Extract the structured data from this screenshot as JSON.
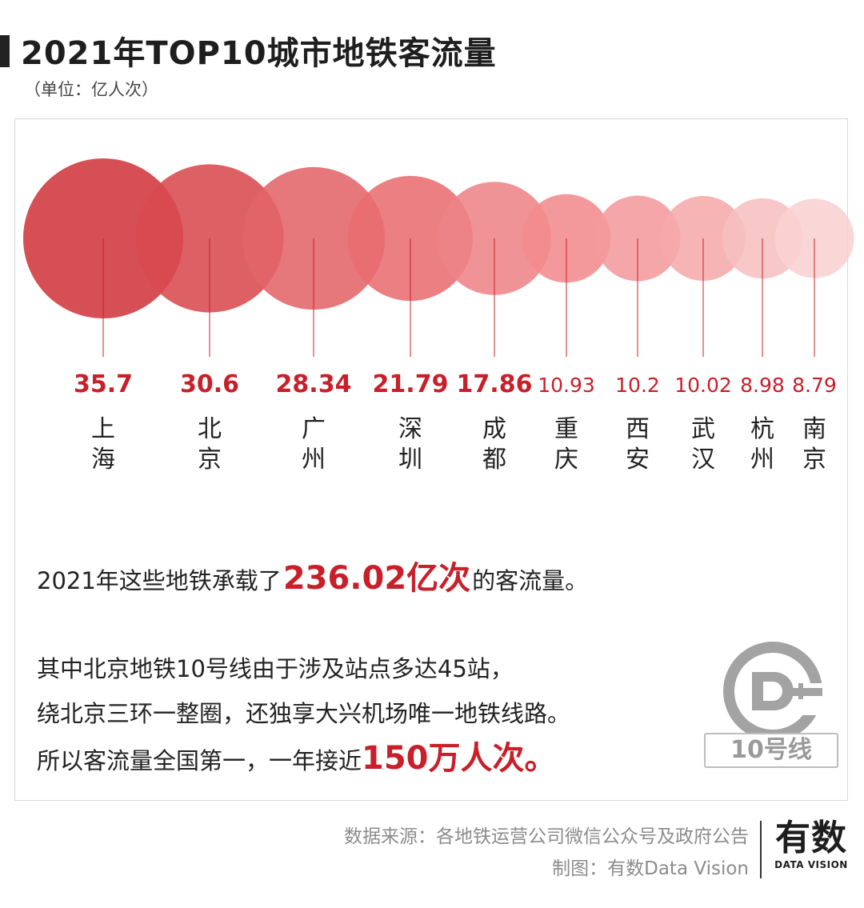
{
  "header": {
    "title": "2021年TOP10城市地铁客流量",
    "unit": "（单位：亿人次）"
  },
  "chart_data": {
    "type": "bubble",
    "title": "2021年TOP10城市地铁客流量",
    "unit": "亿人次",
    "categories": [
      "上海",
      "北京",
      "广州",
      "深圳",
      "成都",
      "重庆",
      "西安",
      "武汉",
      "杭州",
      "南京"
    ],
    "values": [
      35.7,
      30.6,
      28.34,
      21.79,
      17.86,
      10.93,
      10.2,
      10.02,
      8.98,
      8.79
    ],
    "value_labels": [
      "35.7",
      "30.6",
      "28.34",
      "21.79",
      "17.86",
      "10.93",
      "10.2",
      "10.02",
      "8.98",
      "8.79"
    ],
    "colors": [
      "#d0373c",
      "#d84a4f",
      "#e36469",
      "#e86d70",
      "#ee8487",
      "#f18b8d",
      "#f49a9c",
      "#f6aaab",
      "#f7bfc0",
      "#f9d1d2"
    ]
  },
  "summary": {
    "prefix": "2021年这些地铁承载了",
    "highlight": "236.02亿次",
    "suffix": "的客流量。"
  },
  "description": {
    "line1": "其中北京地铁10号线由于涉及站点多达45站，",
    "line2": "绕北京三环一整圈，还独享大兴机场唯一地铁线路。",
    "line3_prefix": "所以客流量全国第一，一年接近",
    "line3_highlight": "150万人次。"
  },
  "line10_badge": {
    "label": "10号线",
    "logo_icon": "beijing-subway-logo-icon",
    "color": "#9a9a9a"
  },
  "footer": {
    "source": "数据来源：各地铁运营公司微信公众号及政府公告",
    "credit": "制图：有数Data Vision",
    "brand_cn": "有数",
    "brand_en": "DATA VISION"
  },
  "accent_color": "#c8202a"
}
